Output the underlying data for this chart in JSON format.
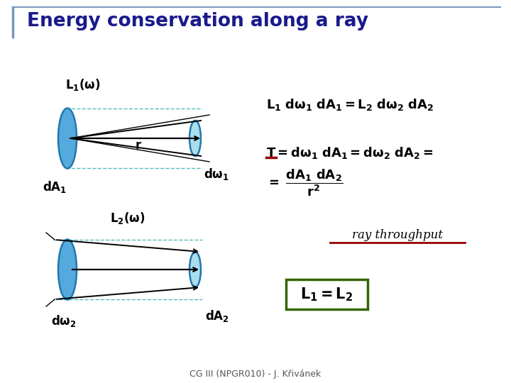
{
  "title": "Energy conservation along a ray",
  "title_fontsize": 19,
  "title_color": "#1a1a8c",
  "background_color": "#ffffff",
  "border_color": "#7799bb",
  "footer": "CG III (NPGR010) - J. Křivánek",
  "footer_fontsize": 9,
  "lens_fill_left": "#55aadd",
  "lens_fill_right": "#aaddee",
  "lens_edge": "#2277aa",
  "dashed_color": "#55bbbb",
  "red_color": "#990000",
  "green_box_color": "#336600",
  "eq_fontsize": 13,
  "label_fontsize": 12
}
